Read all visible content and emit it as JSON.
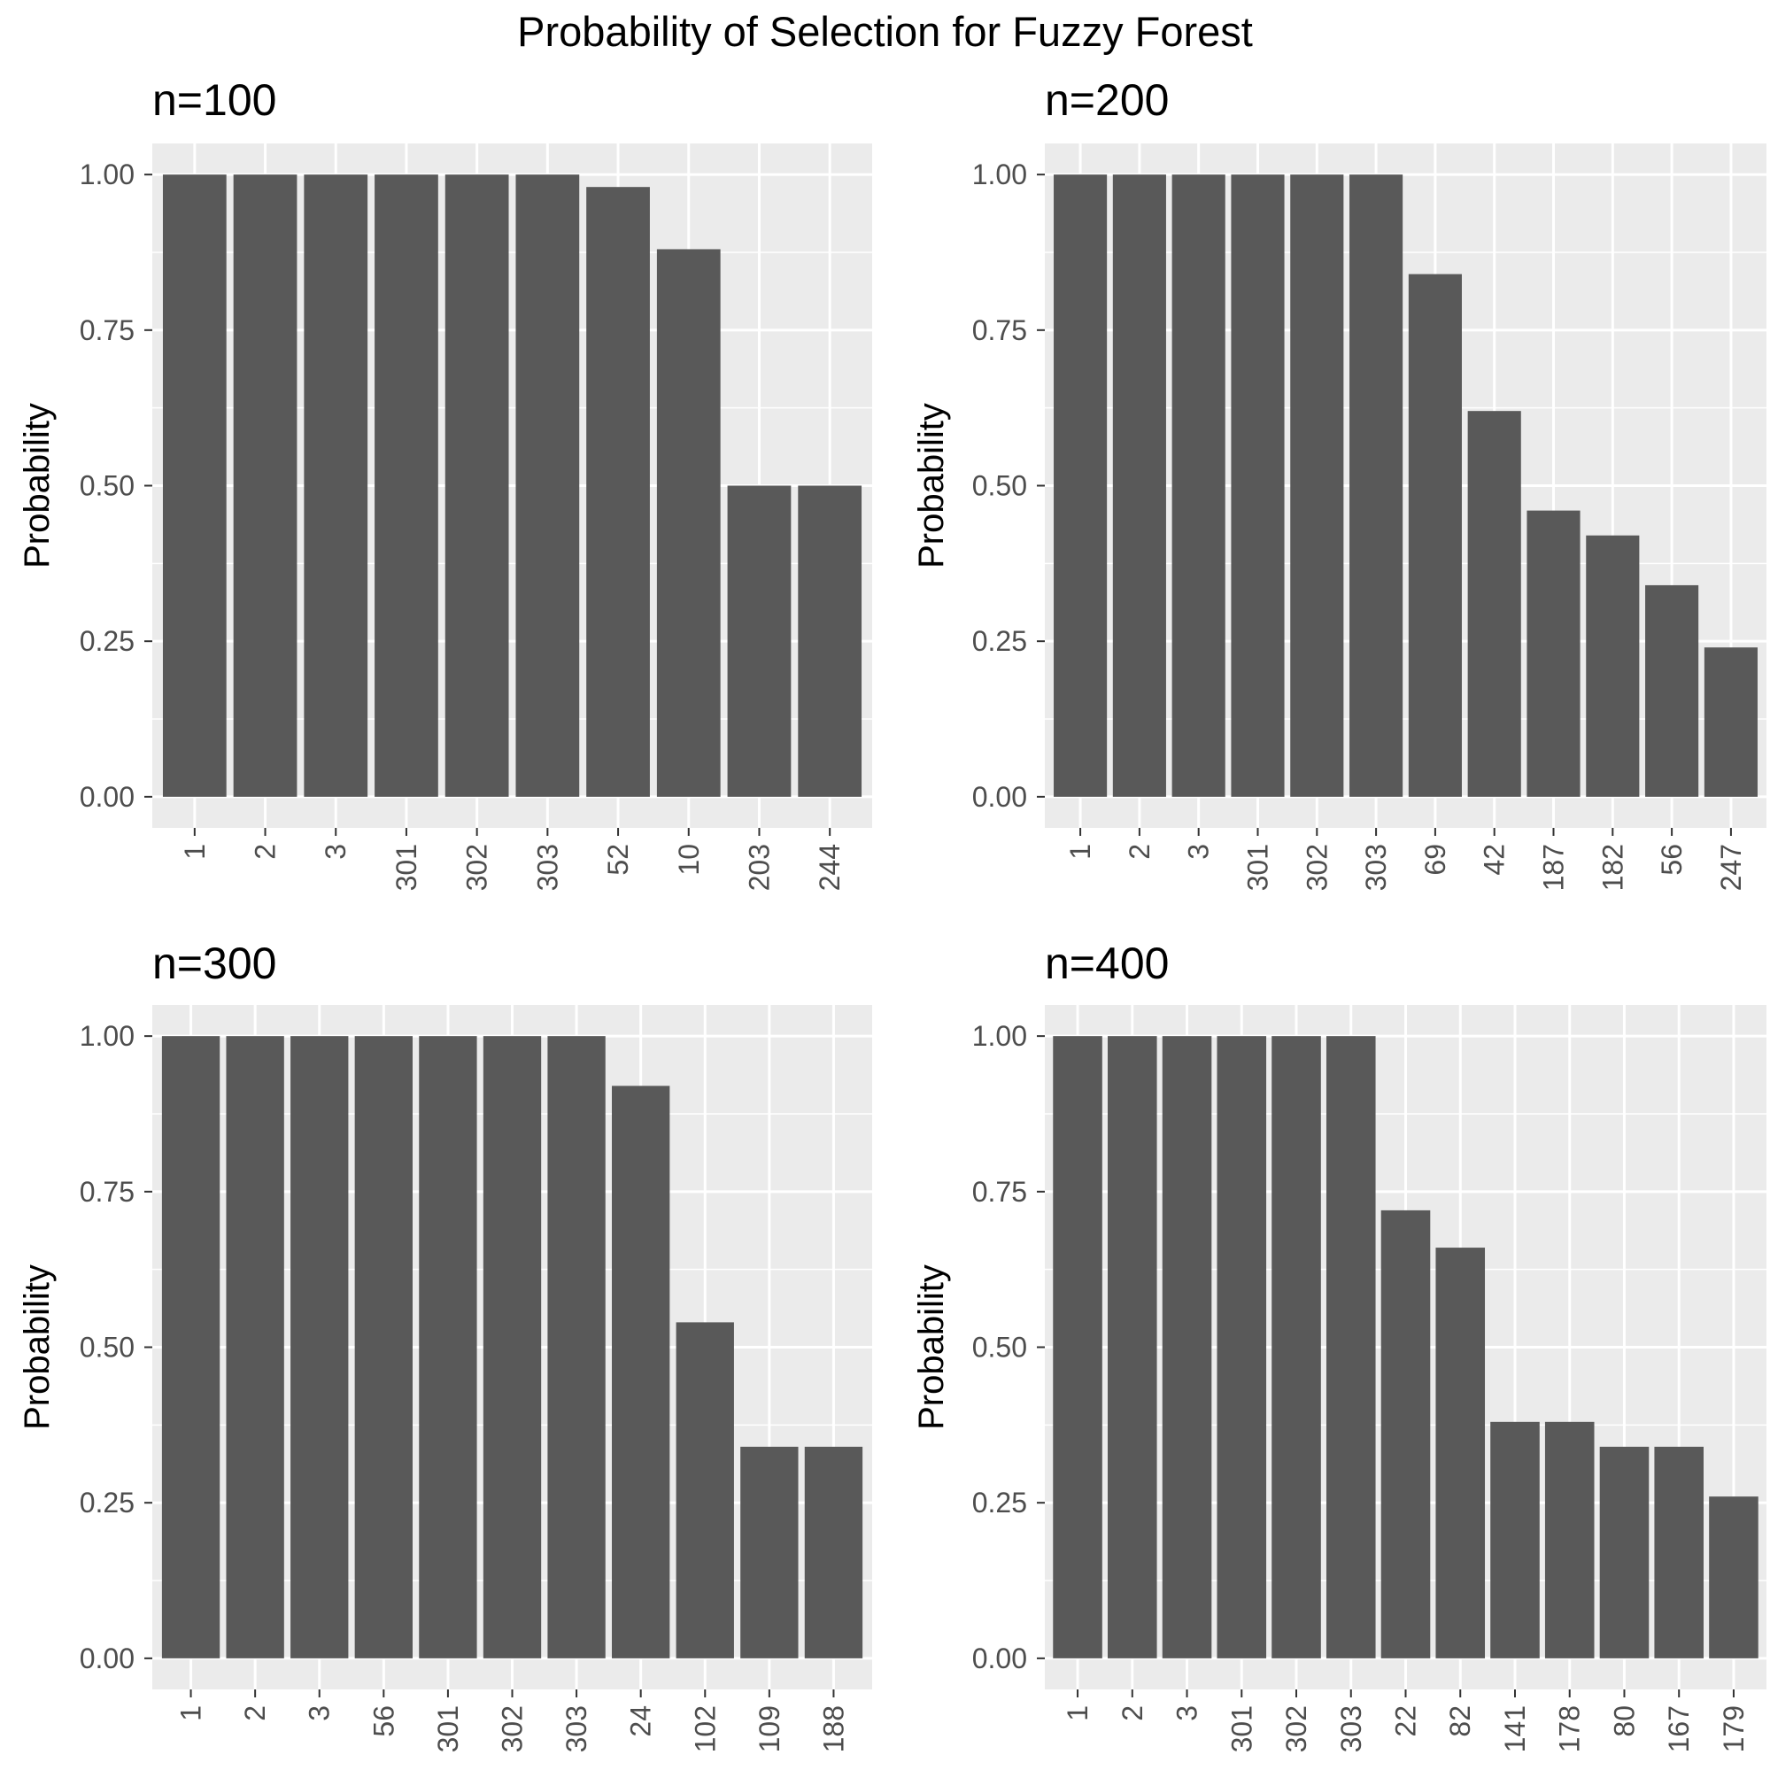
{
  "title": "Probability of Selection for Fuzzy Forest",
  "colors": {
    "panel_bg": "#ebebeb",
    "grid": "#ffffff",
    "bar": "#595959",
    "tick_text": "#4d4d4d",
    "tick_mark": "#333333"
  },
  "chart_data": [
    {
      "type": "bar",
      "title": "n=100",
      "xlabel": "",
      "ylabel": "Probability",
      "ylim": [
        0,
        1
      ],
      "yticks": [
        "0.00",
        "0.25",
        "0.50",
        "0.75",
        "1.00"
      ],
      "grid": true,
      "categories": [
        "1",
        "2",
        "3",
        "301",
        "302",
        "303",
        "52",
        "10",
        "203",
        "244"
      ],
      "values": [
        1.0,
        1.0,
        1.0,
        1.0,
        1.0,
        1.0,
        0.98,
        0.88,
        0.5,
        0.5
      ]
    },
    {
      "type": "bar",
      "title": "n=200",
      "xlabel": "",
      "ylabel": "Probability",
      "ylim": [
        0,
        1
      ],
      "yticks": [
        "0.00",
        "0.25",
        "0.50",
        "0.75",
        "1.00"
      ],
      "grid": true,
      "categories": [
        "1",
        "2",
        "3",
        "301",
        "302",
        "303",
        "69",
        "42",
        "187",
        "182",
        "56",
        "247"
      ],
      "values": [
        1.0,
        1.0,
        1.0,
        1.0,
        1.0,
        1.0,
        0.84,
        0.62,
        0.46,
        0.42,
        0.34,
        0.24
      ]
    },
    {
      "type": "bar",
      "title": "n=300",
      "xlabel": "",
      "ylabel": "Probability",
      "ylim": [
        0,
        1
      ],
      "yticks": [
        "0.00",
        "0.25",
        "0.50",
        "0.75",
        "1.00"
      ],
      "grid": true,
      "categories": [
        "1",
        "2",
        "3",
        "56",
        "301",
        "302",
        "303",
        "24",
        "102",
        "109",
        "188"
      ],
      "values": [
        1.0,
        1.0,
        1.0,
        1.0,
        1.0,
        1.0,
        1.0,
        0.92,
        0.54,
        0.34,
        0.34
      ]
    },
    {
      "type": "bar",
      "title": "n=400",
      "xlabel": "",
      "ylabel": "Probability",
      "ylim": [
        0,
        1
      ],
      "yticks": [
        "0.00",
        "0.25",
        "0.50",
        "0.75",
        "1.00"
      ],
      "grid": true,
      "categories": [
        "1",
        "2",
        "3",
        "301",
        "302",
        "303",
        "22",
        "82",
        "141",
        "178",
        "80",
        "167",
        "179"
      ],
      "values": [
        1.0,
        1.0,
        1.0,
        1.0,
        1.0,
        1.0,
        0.72,
        0.66,
        0.38,
        0.38,
        0.34,
        0.34,
        0.26
      ]
    }
  ]
}
